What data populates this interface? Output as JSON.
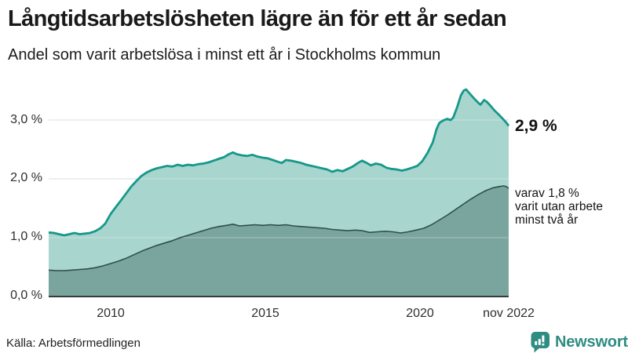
{
  "header": {
    "title": "Långtidsarbetslösheten lägre än för ett år sedan",
    "subtitle": "Andel som varit arbetslösa i minst ett år i Stockholms kommun"
  },
  "chart_data": {
    "type": "area",
    "title": "Långtidsarbetslösheten lägre än för ett år sedan",
    "subtitle": "Andel som varit arbetslösa i minst ett år i Stockholms kommun",
    "unit": "%",
    "grid": true,
    "legend": "annotations-right",
    "x_domain": [
      2008.0,
      2022.875
    ],
    "y_domain": [
      0,
      3.75
    ],
    "grid_color": "#d9dde0",
    "axis_color": "#3a3a3a",
    "yticks": [
      {
        "value": 0,
        "label": "0,0 %"
      },
      {
        "value": 1,
        "label": "1,0 %"
      },
      {
        "value": 2,
        "label": "2,0 %"
      },
      {
        "value": 3,
        "label": "3,0 %"
      }
    ],
    "xticks": [
      {
        "value": 2010,
        "label": "2010"
      },
      {
        "value": 2015,
        "label": "2015"
      },
      {
        "value": 2020,
        "label": "2020"
      },
      {
        "value": 2022.875,
        "label": "nov 2022"
      }
    ],
    "series": [
      {
        "name": "Andel som varit arbetslösa minst ett år",
        "line_color": "#15988a",
        "fill_color": "#a8d5ce",
        "line_width": 2.8,
        "last_value_label": "2,9 %",
        "points": [
          [
            2008.0,
            1.09
          ],
          [
            2008.17,
            1.08
          ],
          [
            2008.33,
            1.06
          ],
          [
            2008.5,
            1.04
          ],
          [
            2008.67,
            1.06
          ],
          [
            2008.83,
            1.08
          ],
          [
            2009.0,
            1.06
          ],
          [
            2009.17,
            1.07
          ],
          [
            2009.33,
            1.08
          ],
          [
            2009.5,
            1.11
          ],
          [
            2009.67,
            1.16
          ],
          [
            2009.83,
            1.24
          ],
          [
            2010.0,
            1.4
          ],
          [
            2010.17,
            1.52
          ],
          [
            2010.33,
            1.63
          ],
          [
            2010.5,
            1.75
          ],
          [
            2010.67,
            1.87
          ],
          [
            2010.83,
            1.96
          ],
          [
            2011.0,
            2.05
          ],
          [
            2011.17,
            2.11
          ],
          [
            2011.33,
            2.15
          ],
          [
            2011.5,
            2.18
          ],
          [
            2011.67,
            2.2
          ],
          [
            2011.83,
            2.22
          ],
          [
            2012.0,
            2.21
          ],
          [
            2012.17,
            2.24
          ],
          [
            2012.33,
            2.22
          ],
          [
            2012.5,
            2.24
          ],
          [
            2012.67,
            2.23
          ],
          [
            2012.83,
            2.25
          ],
          [
            2013.0,
            2.26
          ],
          [
            2013.17,
            2.28
          ],
          [
            2013.33,
            2.31
          ],
          [
            2013.5,
            2.34
          ],
          [
            2013.67,
            2.37
          ],
          [
            2013.83,
            2.42
          ],
          [
            2013.96,
            2.45
          ],
          [
            2014.08,
            2.42
          ],
          [
            2014.25,
            2.4
          ],
          [
            2014.42,
            2.39
          ],
          [
            2014.58,
            2.41
          ],
          [
            2014.75,
            2.38
          ],
          [
            2014.92,
            2.36
          ],
          [
            2015.08,
            2.35
          ],
          [
            2015.25,
            2.32
          ],
          [
            2015.42,
            2.29
          ],
          [
            2015.54,
            2.27
          ],
          [
            2015.67,
            2.32
          ],
          [
            2015.83,
            2.31
          ],
          [
            2016.0,
            2.29
          ],
          [
            2016.17,
            2.27
          ],
          [
            2016.33,
            2.24
          ],
          [
            2016.5,
            2.22
          ],
          [
            2016.67,
            2.2
          ],
          [
            2016.83,
            2.18
          ],
          [
            2017.0,
            2.16
          ],
          [
            2017.17,
            2.12
          ],
          [
            2017.33,
            2.15
          ],
          [
            2017.5,
            2.13
          ],
          [
            2017.67,
            2.17
          ],
          [
            2017.83,
            2.21
          ],
          [
            2018.0,
            2.27
          ],
          [
            2018.13,
            2.31
          ],
          [
            2018.29,
            2.27
          ],
          [
            2018.42,
            2.23
          ],
          [
            2018.58,
            2.26
          ],
          [
            2018.75,
            2.24
          ],
          [
            2018.92,
            2.19
          ],
          [
            2019.08,
            2.17
          ],
          [
            2019.25,
            2.16
          ],
          [
            2019.42,
            2.14
          ],
          [
            2019.58,
            2.16
          ],
          [
            2019.75,
            2.19
          ],
          [
            2019.92,
            2.22
          ],
          [
            2020.08,
            2.3
          ],
          [
            2020.25,
            2.44
          ],
          [
            2020.42,
            2.62
          ],
          [
            2020.54,
            2.84
          ],
          [
            2020.63,
            2.95
          ],
          [
            2020.75,
            2.99
          ],
          [
            2020.88,
            3.02
          ],
          [
            2021.0,
            3.0
          ],
          [
            2021.08,
            3.04
          ],
          [
            2021.21,
            3.22
          ],
          [
            2021.33,
            3.42
          ],
          [
            2021.42,
            3.5
          ],
          [
            2021.5,
            3.52
          ],
          [
            2021.63,
            3.44
          ],
          [
            2021.75,
            3.37
          ],
          [
            2021.88,
            3.3
          ],
          [
            2021.96,
            3.26
          ],
          [
            2022.08,
            3.34
          ],
          [
            2022.17,
            3.31
          ],
          [
            2022.29,
            3.24
          ],
          [
            2022.42,
            3.16
          ],
          [
            2022.54,
            3.1
          ],
          [
            2022.67,
            3.03
          ],
          [
            2022.79,
            2.96
          ],
          [
            2022.875,
            2.9
          ]
        ]
      },
      {
        "name": "varav utan arbete minst två år",
        "line_color": "#2f4f4b",
        "fill_color": "#7aa59e",
        "line_width": 1.6,
        "annotation_lines": [
          "varav 1,8 %",
          "varit utan arbete",
          "minst två år"
        ],
        "points": [
          [
            2008.0,
            0.45
          ],
          [
            2008.25,
            0.44
          ],
          [
            2008.5,
            0.44
          ],
          [
            2008.75,
            0.45
          ],
          [
            2009.0,
            0.46
          ],
          [
            2009.25,
            0.47
          ],
          [
            2009.5,
            0.49
          ],
          [
            2009.75,
            0.52
          ],
          [
            2010.0,
            0.56
          ],
          [
            2010.25,
            0.6
          ],
          [
            2010.5,
            0.65
          ],
          [
            2010.75,
            0.71
          ],
          [
            2011.0,
            0.77
          ],
          [
            2011.25,
            0.82
          ],
          [
            2011.5,
            0.87
          ],
          [
            2011.75,
            0.91
          ],
          [
            2012.0,
            0.95
          ],
          [
            2012.25,
            1.0
          ],
          [
            2012.5,
            1.04
          ],
          [
            2012.75,
            1.08
          ],
          [
            2013.0,
            1.12
          ],
          [
            2013.25,
            1.16
          ],
          [
            2013.5,
            1.19
          ],
          [
            2013.75,
            1.21
          ],
          [
            2013.96,
            1.23
          ],
          [
            2014.17,
            1.2
          ],
          [
            2014.42,
            1.21
          ],
          [
            2014.67,
            1.22
          ],
          [
            2014.92,
            1.21
          ],
          [
            2015.17,
            1.22
          ],
          [
            2015.42,
            1.21
          ],
          [
            2015.67,
            1.22
          ],
          [
            2015.92,
            1.2
          ],
          [
            2016.17,
            1.19
          ],
          [
            2016.42,
            1.18
          ],
          [
            2016.67,
            1.17
          ],
          [
            2016.92,
            1.16
          ],
          [
            2017.17,
            1.14
          ],
          [
            2017.42,
            1.13
          ],
          [
            2017.67,
            1.12
          ],
          [
            2017.92,
            1.13
          ],
          [
            2018.13,
            1.12
          ],
          [
            2018.38,
            1.09
          ],
          [
            2018.63,
            1.1
          ],
          [
            2018.88,
            1.11
          ],
          [
            2019.13,
            1.1
          ],
          [
            2019.38,
            1.08
          ],
          [
            2019.63,
            1.1
          ],
          [
            2019.88,
            1.13
          ],
          [
            2020.13,
            1.16
          ],
          [
            2020.38,
            1.22
          ],
          [
            2020.63,
            1.3
          ],
          [
            2020.88,
            1.38
          ],
          [
            2021.13,
            1.47
          ],
          [
            2021.38,
            1.56
          ],
          [
            2021.63,
            1.65
          ],
          [
            2021.88,
            1.73
          ],
          [
            2022.13,
            1.8
          ],
          [
            2022.38,
            1.85
          ],
          [
            2022.58,
            1.87
          ],
          [
            2022.71,
            1.88
          ],
          [
            2022.79,
            1.87
          ],
          [
            2022.875,
            1.84
          ]
        ]
      }
    ]
  },
  "footer": {
    "source": "Källa: Arbetsförmedlingen",
    "brand": "Newsworthy",
    "brand_color": "#2f8c81"
  }
}
